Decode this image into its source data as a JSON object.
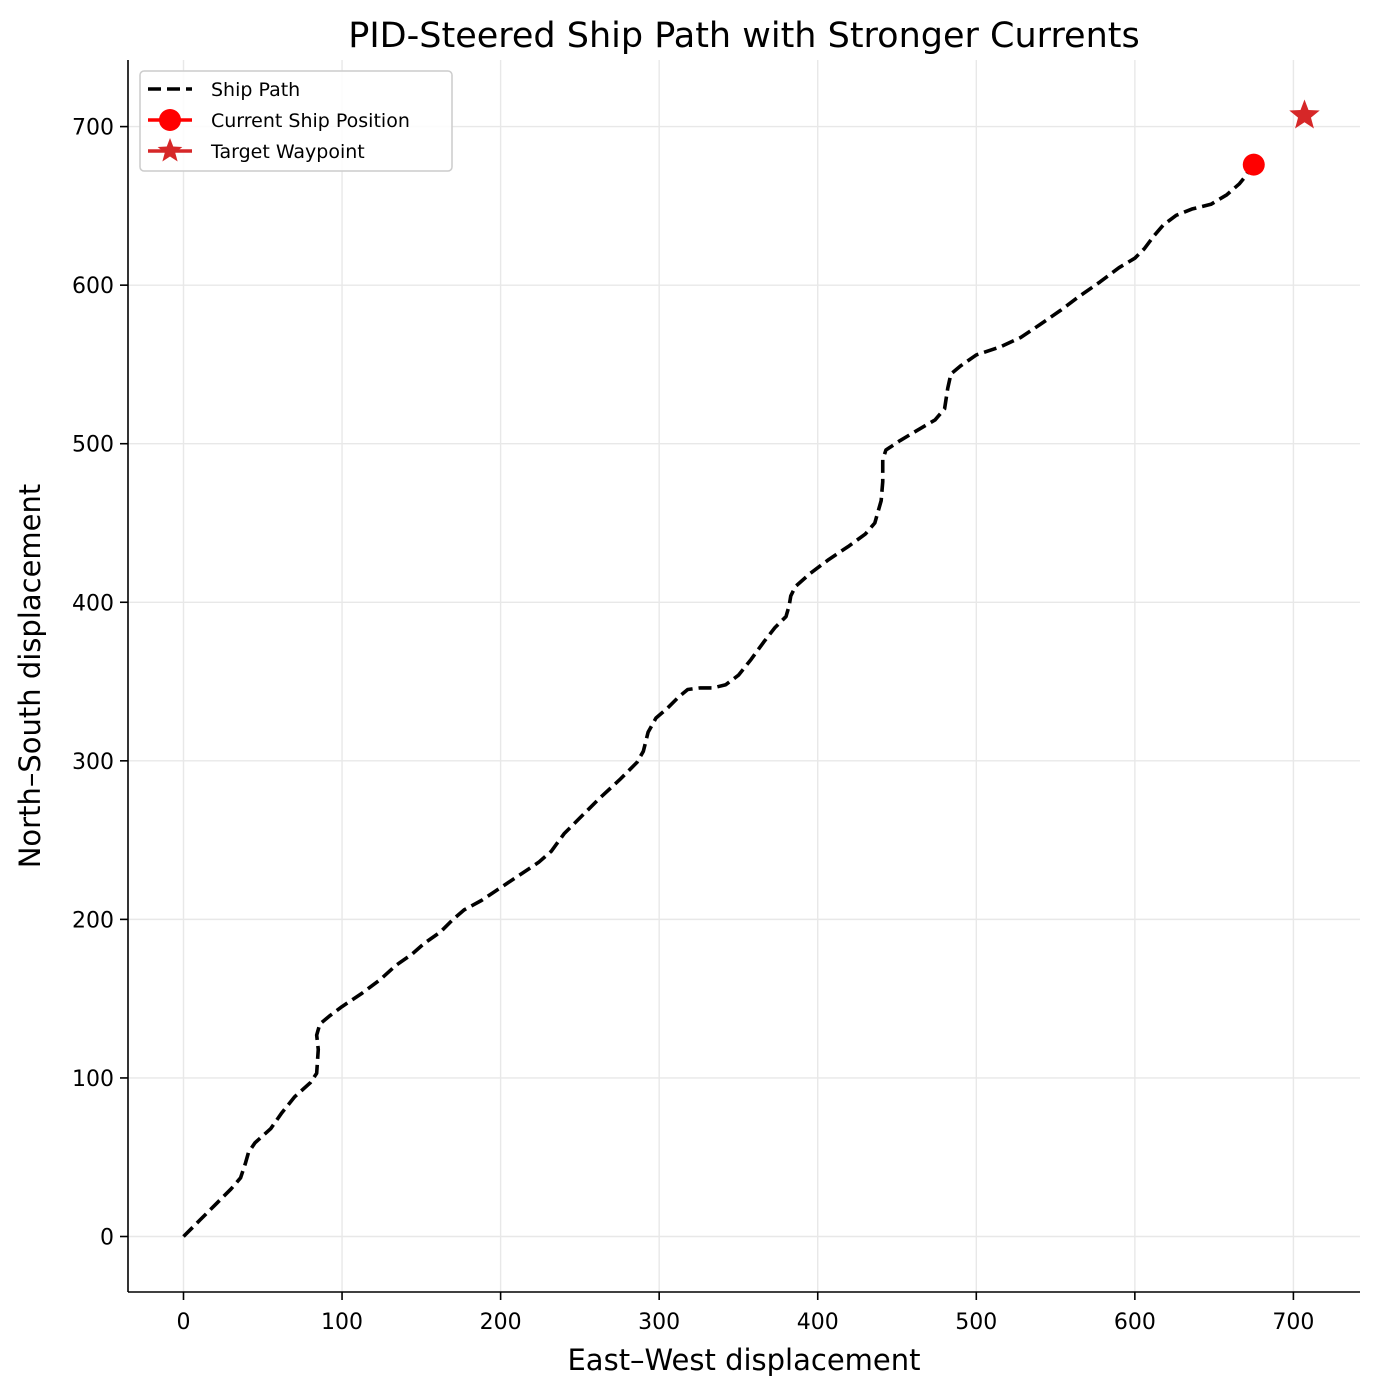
{
  "chart_data": {
    "type": "line",
    "title": "PID-Steered Ship Path with Stronger Currents",
    "xlabel": "East–West displacement",
    "ylabel": "North–South displacement",
    "xlim": [
      -35,
      742
    ],
    "ylim": [
      -35,
      742
    ],
    "xticks": [
      0,
      100,
      200,
      300,
      400,
      500,
      600,
      700
    ],
    "yticks": [
      0,
      100,
      200,
      300,
      400,
      500,
      600,
      700
    ],
    "grid": true,
    "legend": {
      "position": "upper-left",
      "entries": [
        "Ship Path",
        "Current Ship Position",
        "Target Waypoint"
      ]
    },
    "colors": {
      "path": "#000000",
      "current": "#ff0000",
      "target": "#d62728",
      "grid": "#e8e8e8"
    },
    "series": [
      {
        "name": "Ship Path",
        "style": "dashed",
        "x": [
          0,
          10,
          20,
          30,
          36,
          39,
          41,
          45,
          55,
          62,
          70,
          80,
          84,
          85,
          84,
          86,
          92,
          100,
          112,
          124,
          134,
          144,
          152,
          162,
          170,
          177,
          188,
          200,
          212,
          224,
          232,
          240,
          250,
          262,
          275,
          286,
          290,
          293,
          298,
          305,
          312,
          318,
          326,
          334,
          342,
          350,
          358,
          366,
          373,
          380,
          382,
          383,
          386,
          395,
          407,
          419,
          430,
          436,
          440,
          441,
          441,
          443,
          452,
          462,
          474,
          480,
          482,
          484,
          490,
          500,
          515,
          528,
          540,
          553,
          565,
          578,
          590,
          600,
          606,
          612,
          618,
          626,
          636,
          648,
          658,
          666,
          670,
          674
        ],
        "y": [
          0,
          10,
          20,
          30,
          37,
          46,
          53,
          59,
          68,
          78,
          88,
          97,
          103,
          118,
          127,
          134,
          139,
          145,
          153,
          162,
          171,
          178,
          185,
          192,
          200,
          206,
          212,
          220,
          228,
          236,
          243,
          254,
          264,
          276,
          288,
          299,
          306,
          318,
          327,
          333,
          340,
          345,
          346,
          346,
          348,
          354,
          364,
          375,
          384,
          391,
          398,
          404,
          410,
          418,
          427,
          435,
          443,
          450,
          464,
          476,
          490,
          496,
          502,
          508,
          515,
          522,
          535,
          544,
          549,
          556,
          561,
          567,
          575,
          584,
          593,
          602,
          611,
          617,
          623,
          631,
          638,
          644,
          648,
          651,
          657,
          664,
          669,
          676
        ]
      },
      {
        "name": "Current Ship Position",
        "marker": "circle",
        "x": [
          675
        ],
        "y": [
          676
        ]
      },
      {
        "name": "Target Waypoint",
        "marker": "star",
        "x": [
          707
        ],
        "y": [
          707
        ]
      }
    ]
  }
}
